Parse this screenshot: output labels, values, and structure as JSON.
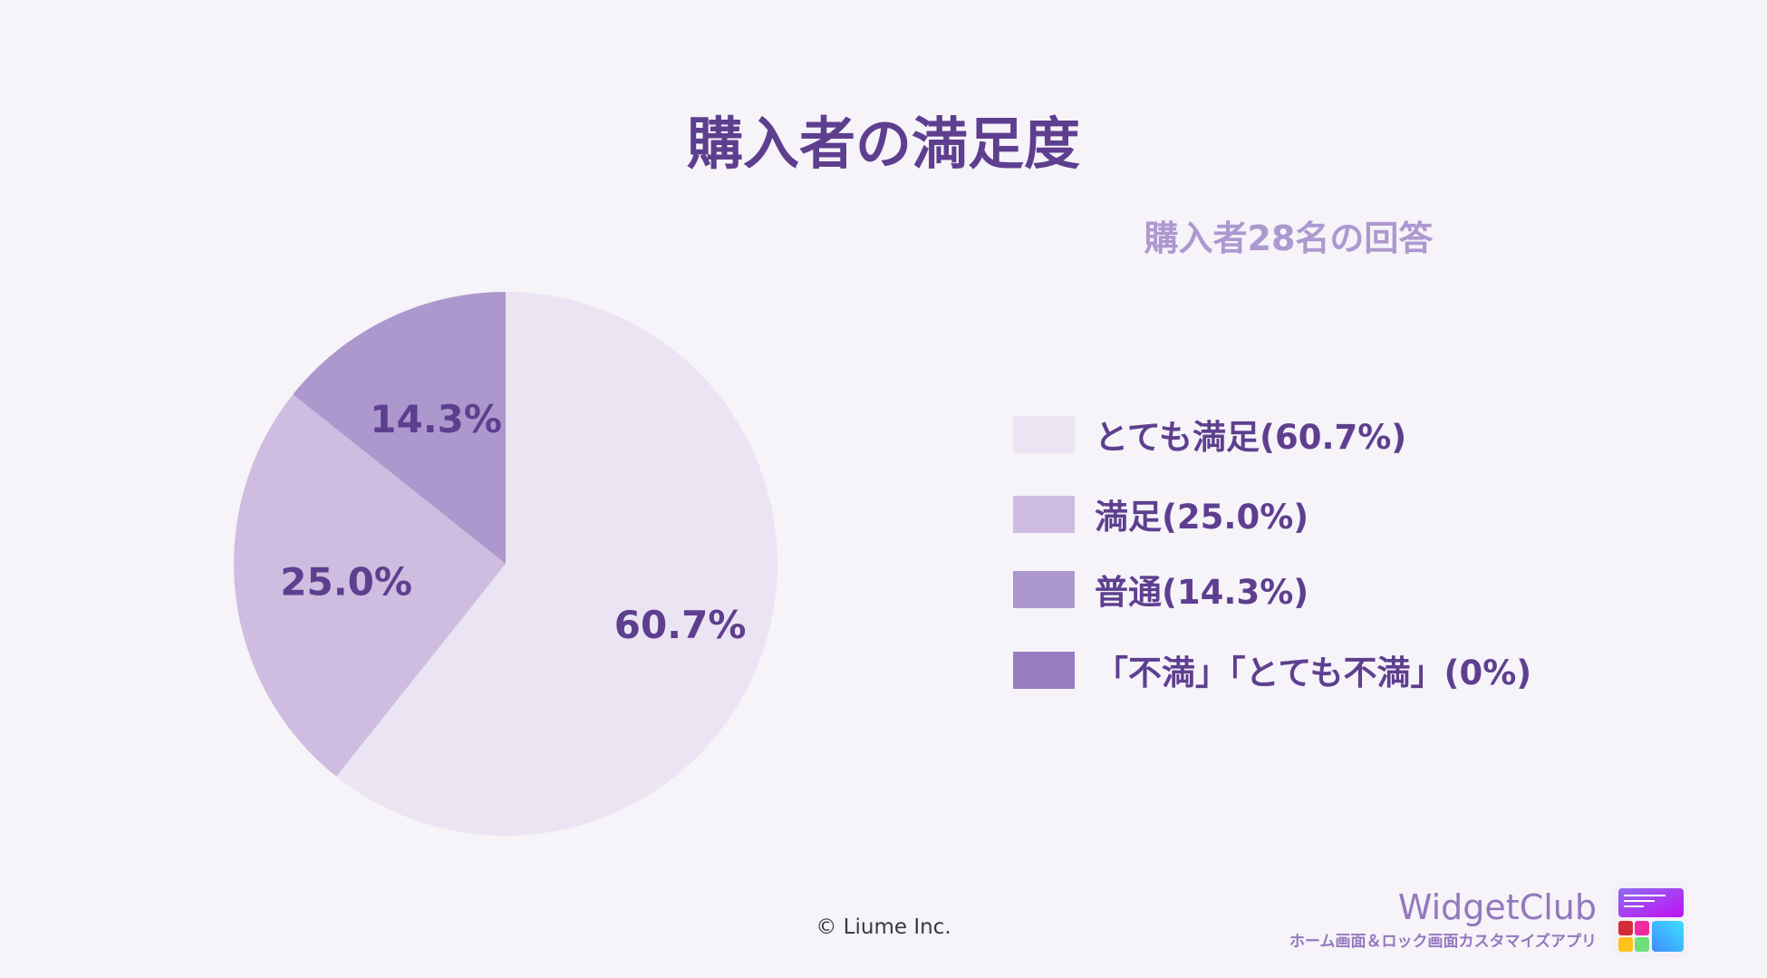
{
  "chart_data": {
    "type": "pie",
    "title": "購入者の満足度",
    "subtitle": "購入者28名の回答",
    "start_angle": "12 o'clock",
    "direction": "clockwise",
    "slices": [
      {
        "label": "60.7%",
        "value": 60.7,
        "color": "#ebe5f3"
      },
      {
        "label": "25.0%",
        "value": 25.0,
        "color": "#cebde0"
      },
      {
        "label": "14.3%",
        "value": 14.3,
        "color": "#ac98cd"
      }
    ],
    "legend_placement": "right",
    "legend": [
      {
        "label": "とても満足(60.7%)",
        "color": "#ebe5f3"
      },
      {
        "label": "満足(25.0%)",
        "color": "#cebde0"
      },
      {
        "label": "普通(14.3%)",
        "color": "#ac98cd"
      },
      {
        "label": "「不満」「とても不満」(0%)",
        "color": "#9a7cc2"
      }
    ]
  },
  "footer": {
    "copyright": "© Liume Inc.",
    "brand_name": "WidgetClub",
    "brand_tagline": "ホーム画面＆ロック画面カスタマイズアプリ",
    "brand_icon": "widgetclub-app-icon"
  },
  "colors": {
    "background": "#f6f3f9",
    "text": "#5e3f8f",
    "subtitle": "#ad98cf"
  }
}
